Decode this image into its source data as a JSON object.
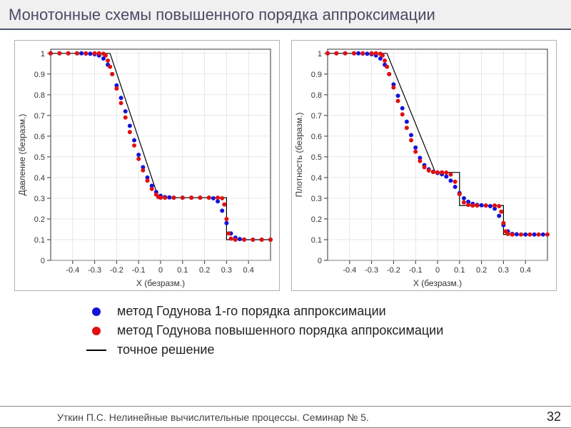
{
  "title": "Монотонные схемы повышенного порядка аппроксимации",
  "footer_text": "Уткин П.С. Нелинейные вычислительные процессы. Семинар № 5.",
  "page_number": "32",
  "colors": {
    "blue": "#1414d8",
    "red": "#e01010",
    "black": "#000000",
    "grid": "#d0d0d0",
    "axis": "#333333",
    "chart_border": "#b0b0b0"
  },
  "legend": [
    {
      "marker": "dot",
      "color_key": "blue",
      "label": "метод Годунова 1-го порядка аппроксимации"
    },
    {
      "marker": "dot",
      "color_key": "red",
      "label": "метод Годунова повышенного порядка аппроксимации"
    },
    {
      "marker": "line",
      "color_key": "black",
      "label": "точное решение"
    }
  ],
  "axis_common": {
    "xlim": [
      -0.5,
      0.5
    ],
    "xticks": [
      -0.4,
      -0.3,
      -0.2,
      -0.1,
      0,
      0.1,
      0.2,
      0.3,
      0.4
    ],
    "ylim": [
      0,
      1.02
    ],
    "yticks": [
      0,
      0.1,
      0.2,
      0.3,
      0.4,
      0.5,
      0.6,
      0.7,
      0.8,
      0.9,
      1
    ],
    "xlabel": "X (безразм.)",
    "tick_fontsize": 11,
    "label_fontsize": 12,
    "marker_radius": 3,
    "line_width": 1.2,
    "grid_on": true
  },
  "charts": [
    {
      "ylabel": "Давление (безразм.)",
      "exact": [
        [
          -0.5,
          1.0
        ],
        [
          -0.23,
          1.0
        ],
        [
          -0.23,
          1.0
        ],
        [
          -0.01,
          0.303
        ],
        [
          0.3,
          0.303
        ],
        [
          0.3,
          0.1
        ],
        [
          0.5,
          0.1
        ]
      ],
      "blue": [
        [
          -0.5,
          1.0
        ],
        [
          -0.46,
          1.0
        ],
        [
          -0.42,
          1.0
        ],
        [
          -0.38,
          1.0
        ],
        [
          -0.36,
          1.0
        ],
        [
          -0.34,
          0.999
        ],
        [
          -0.32,
          0.998
        ],
        [
          -0.3,
          0.996
        ],
        [
          -0.28,
          0.99
        ],
        [
          -0.26,
          0.975
        ],
        [
          -0.24,
          0.945
        ],
        [
          -0.22,
          0.9
        ],
        [
          -0.2,
          0.845
        ],
        [
          -0.18,
          0.785
        ],
        [
          -0.16,
          0.72
        ],
        [
          -0.14,
          0.65
        ],
        [
          -0.12,
          0.58
        ],
        [
          -0.1,
          0.51
        ],
        [
          -0.08,
          0.45
        ],
        [
          -0.06,
          0.4
        ],
        [
          -0.04,
          0.36
        ],
        [
          -0.02,
          0.33
        ],
        [
          0.0,
          0.312
        ],
        [
          0.02,
          0.306
        ],
        [
          0.04,
          0.304
        ],
        [
          0.06,
          0.303
        ],
        [
          0.1,
          0.303
        ],
        [
          0.14,
          0.303
        ],
        [
          0.18,
          0.303
        ],
        [
          0.22,
          0.303
        ],
        [
          0.24,
          0.3
        ],
        [
          0.26,
          0.285
        ],
        [
          0.28,
          0.24
        ],
        [
          0.3,
          0.18
        ],
        [
          0.32,
          0.13
        ],
        [
          0.34,
          0.11
        ],
        [
          0.36,
          0.103
        ],
        [
          0.38,
          0.101
        ],
        [
          0.42,
          0.1
        ],
        [
          0.46,
          0.1
        ],
        [
          0.5,
          0.1
        ]
      ],
      "red": [
        [
          -0.5,
          1.0
        ],
        [
          -0.46,
          1.0
        ],
        [
          -0.42,
          1.0
        ],
        [
          -0.38,
          1.0
        ],
        [
          -0.34,
          1.0
        ],
        [
          -0.3,
          1.0
        ],
        [
          -0.28,
          1.0
        ],
        [
          -0.26,
          0.998
        ],
        [
          -0.25,
          0.99
        ],
        [
          -0.24,
          0.965
        ],
        [
          -0.23,
          0.935
        ],
        [
          -0.22,
          0.9
        ],
        [
          -0.2,
          0.83
        ],
        [
          -0.18,
          0.76
        ],
        [
          -0.16,
          0.69
        ],
        [
          -0.14,
          0.62
        ],
        [
          -0.12,
          0.555
        ],
        [
          -0.1,
          0.49
        ],
        [
          -0.08,
          0.435
        ],
        [
          -0.06,
          0.385
        ],
        [
          -0.04,
          0.345
        ],
        [
          -0.02,
          0.318
        ],
        [
          -0.01,
          0.306
        ],
        [
          0.0,
          0.303
        ],
        [
          0.02,
          0.303
        ],
        [
          0.06,
          0.303
        ],
        [
          0.1,
          0.303
        ],
        [
          0.14,
          0.303
        ],
        [
          0.18,
          0.303
        ],
        [
          0.22,
          0.303
        ],
        [
          0.26,
          0.303
        ],
        [
          0.28,
          0.3
        ],
        [
          0.29,
          0.27
        ],
        [
          0.3,
          0.2
        ],
        [
          0.31,
          0.13
        ],
        [
          0.32,
          0.105
        ],
        [
          0.34,
          0.1
        ],
        [
          0.38,
          0.1
        ],
        [
          0.42,
          0.1
        ],
        [
          0.46,
          0.1
        ],
        [
          0.5,
          0.1
        ]
      ]
    },
    {
      "ylabel": "Плотность (безразм.)",
      "exact": [
        [
          -0.5,
          1.0
        ],
        [
          -0.23,
          1.0
        ],
        [
          -0.01,
          0.425
        ],
        [
          0.1,
          0.425
        ],
        [
          0.1,
          0.265
        ],
        [
          0.3,
          0.265
        ],
        [
          0.3,
          0.125
        ],
        [
          0.5,
          0.125
        ]
      ],
      "blue": [
        [
          -0.5,
          1.0
        ],
        [
          -0.46,
          1.0
        ],
        [
          -0.42,
          1.0
        ],
        [
          -0.38,
          1.0
        ],
        [
          -0.36,
          1.0
        ],
        [
          -0.34,
          0.999
        ],
        [
          -0.32,
          0.998
        ],
        [
          -0.3,
          0.996
        ],
        [
          -0.28,
          0.99
        ],
        [
          -0.26,
          0.975
        ],
        [
          -0.24,
          0.945
        ],
        [
          -0.22,
          0.9
        ],
        [
          -0.2,
          0.85
        ],
        [
          -0.18,
          0.795
        ],
        [
          -0.16,
          0.735
        ],
        [
          -0.14,
          0.67
        ],
        [
          -0.12,
          0.605
        ],
        [
          -0.1,
          0.545
        ],
        [
          -0.08,
          0.495
        ],
        [
          -0.06,
          0.46
        ],
        [
          -0.04,
          0.44
        ],
        [
          -0.02,
          0.428
        ],
        [
          0.0,
          0.422
        ],
        [
          0.02,
          0.416
        ],
        [
          0.04,
          0.405
        ],
        [
          0.06,
          0.385
        ],
        [
          0.08,
          0.355
        ],
        [
          0.1,
          0.325
        ],
        [
          0.12,
          0.3
        ],
        [
          0.14,
          0.283
        ],
        [
          0.16,
          0.273
        ],
        [
          0.18,
          0.268
        ],
        [
          0.2,
          0.266
        ],
        [
          0.22,
          0.265
        ],
        [
          0.24,
          0.262
        ],
        [
          0.26,
          0.25
        ],
        [
          0.28,
          0.215
        ],
        [
          0.3,
          0.17
        ],
        [
          0.32,
          0.14
        ],
        [
          0.34,
          0.128
        ],
        [
          0.36,
          0.126
        ],
        [
          0.4,
          0.125
        ],
        [
          0.44,
          0.125
        ],
        [
          0.48,
          0.125
        ]
      ],
      "red": [
        [
          -0.5,
          1.0
        ],
        [
          -0.46,
          1.0
        ],
        [
          -0.42,
          1.0
        ],
        [
          -0.38,
          1.0
        ],
        [
          -0.34,
          1.0
        ],
        [
          -0.3,
          1.0
        ],
        [
          -0.28,
          1.0
        ],
        [
          -0.26,
          0.998
        ],
        [
          -0.25,
          0.99
        ],
        [
          -0.24,
          0.965
        ],
        [
          -0.23,
          0.935
        ],
        [
          -0.22,
          0.9
        ],
        [
          -0.2,
          0.835
        ],
        [
          -0.18,
          0.77
        ],
        [
          -0.16,
          0.705
        ],
        [
          -0.14,
          0.64
        ],
        [
          -0.12,
          0.58
        ],
        [
          -0.1,
          0.525
        ],
        [
          -0.08,
          0.48
        ],
        [
          -0.06,
          0.45
        ],
        [
          -0.04,
          0.434
        ],
        [
          -0.02,
          0.427
        ],
        [
          0.0,
          0.425
        ],
        [
          0.02,
          0.425
        ],
        [
          0.04,
          0.424
        ],
        [
          0.06,
          0.415
        ],
        [
          0.08,
          0.38
        ],
        [
          0.1,
          0.32
        ],
        [
          0.12,
          0.28
        ],
        [
          0.14,
          0.268
        ],
        [
          0.16,
          0.265
        ],
        [
          0.18,
          0.265
        ],
        [
          0.22,
          0.265
        ],
        [
          0.26,
          0.265
        ],
        [
          0.28,
          0.262
        ],
        [
          0.29,
          0.235
        ],
        [
          0.3,
          0.18
        ],
        [
          0.31,
          0.14
        ],
        [
          0.32,
          0.128
        ],
        [
          0.34,
          0.125
        ],
        [
          0.38,
          0.125
        ],
        [
          0.42,
          0.125
        ],
        [
          0.46,
          0.125
        ],
        [
          0.5,
          0.125
        ]
      ]
    }
  ]
}
